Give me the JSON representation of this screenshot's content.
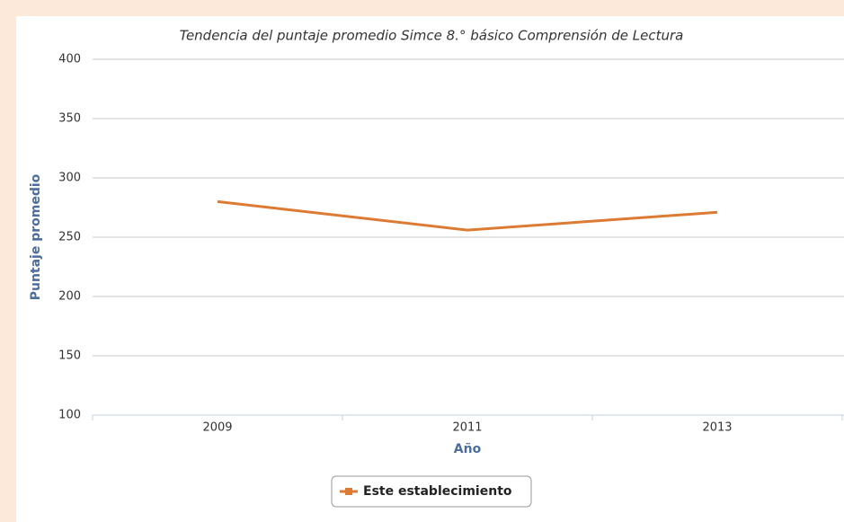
{
  "chart_data": {
    "type": "line",
    "title": "Tendencia del puntaje promedio Simce 8.° básico Comprensión de Lectura",
    "x_label": "Año",
    "y_label": "Puntaje promedio",
    "categories": [
      "2009",
      "2011",
      "2013"
    ],
    "series": [
      {
        "name": "Este establecimiento",
        "color": "#dd7a34",
        "values": [
          280,
          256,
          271
        ]
      }
    ],
    "ylim": [
      100,
      400
    ],
    "yticks": [
      100,
      150,
      200,
      250,
      300,
      350,
      400
    ],
    "grid": true,
    "legend": "bottom"
  }
}
